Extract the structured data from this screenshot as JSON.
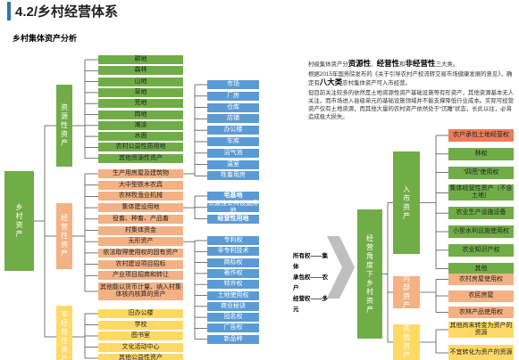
{
  "header": {
    "title": "4.2/乡村经营体系",
    "subtitle": "乡村集体资产分析"
  },
  "root": "乡村资产",
  "groups": [
    {
      "label": "资源性资产",
      "items": [
        "耕地",
        "森林",
        "山地",
        "草地",
        "荒地",
        "岗地",
        "滩涂",
        "水面",
        "农村公益性质用地",
        "其他资源性资产"
      ]
    },
    {
      "label": "经营性资产",
      "items": [
        "生产用房屋及建筑物",
        "大中型铁木农具",
        "农林牧渔业机械",
        "集体建设用地",
        "役畜、种畜、产品畜",
        "村集体资金",
        "无形资产",
        "依法取得使用权的固有资产",
        "农村建设项目招标",
        "产业项目招商和转让",
        "其他能以货币计量、纳入村集体核内核算的资产"
      ]
    },
    {
      "label": "非经营性资产",
      "items": [
        "旧办公楼",
        "学校",
        "图书室",
        "文化活动中心",
        "其他公益性资产"
      ]
    }
  ],
  "buildings": [
    "市场",
    "厂房",
    "仓库",
    "店铺",
    "办公楼",
    "车库",
    "沼气池",
    "温室",
    "牲畜用房"
  ],
  "land": [
    "宅基地",
    "公益性公共设施用地",
    "经营性用地"
  ],
  "intangibles": [
    "专利权",
    "非专利技术",
    "商标权",
    "著作权",
    "特许权",
    "土地使用权",
    "商业秘诀",
    "冠名权",
    "广告权",
    "新品种"
  ],
  "description": {
    "line1": [
      "村级集体资产分",
      "资源性",
      "、",
      "经营性",
      "和",
      "非经营性",
      "三大类。"
    ],
    "line2": [
      "根据2015年国务院发布的《关于引导农村产权流转交易市场健康发展的意见》，确定有",
      "八大类",
      "农村集体资产可入市经营。"
    ],
    "line3": "但目前关注较多的依然是土地资源性资产基础设施等有形资产，其他资源基本无人关注，而市场进入县级单元的基础设施领域并不能支撑降低行业成本。实际可经营资产仅有土地资源，而其他大量的农村资产依然处于“沉睡”状态，长此以往，必将造成极大损失。"
  },
  "rights": [
    "所有权——集体",
    "承包权——农户",
    "经营权——多元"
  ],
  "market_view": {
    "root": "经营角度下乡村资产",
    "groups": [
      {
        "label": "入市资产",
        "items": [
          "农户承包土地经营权",
          "林权",
          "“四荒”使用权",
          "集体经营性资产（不含土地）",
          "农业生产设施设备",
          "小型水利设施使用权",
          "农业知识产权",
          "其他"
        ]
      },
      {
        "label": "内部资产",
        "items": [
          "农村房屋使用权",
          "农民房屋",
          "农林产品使用权"
        ]
      },
      {
        "label": "其他资产",
        "items": [
          "其他尚未转变为资产的资源",
          "不宜转化为资产的资源"
        ]
      }
    ]
  }
}
